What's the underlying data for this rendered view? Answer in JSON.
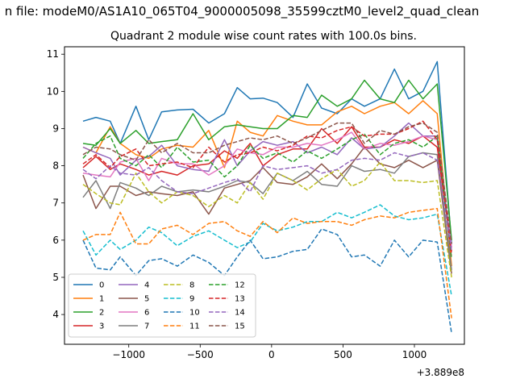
{
  "chart_data": {
    "type": "line",
    "suptitle": "n file: modeM0/AS1A10_065T04_9000005098_35599cztM0_level2_quad_clean",
    "title": "Quadrant 2 module wise count rates with 100.0s bins.",
    "xlabel": "",
    "ylabel": "",
    "x_offset_text": "+3.889e8",
    "xlim": [
      -1450,
      1350
    ],
    "ylim": [
      3.2,
      11.2
    ],
    "x_ticks": [
      -1000,
      -500,
      0,
      500,
      1000
    ],
    "x_tick_labels": [
      "−1000",
      "−500",
      "0",
      "500",
      "1000"
    ],
    "y_ticks": [
      4,
      5,
      6,
      7,
      8,
      9,
      10,
      11
    ],
    "y_tick_labels": [
      "4",
      "5",
      "6",
      "7",
      "8",
      "9",
      "10",
      "11"
    ],
    "legend_location": "lower-left",
    "legend_columns": 4,
    "x": [
      -1320,
      -1230,
      -1130,
      -1060,
      -950,
      -860,
      -770,
      -660,
      -550,
      -440,
      -330,
      -240,
      -150,
      -60,
      40,
      150,
      250,
      350,
      460,
      560,
      650,
      760,
      860,
      960,
      1060,
      1160,
      1260
    ],
    "series": [
      {
        "name": "0",
        "color": "#1f77b4",
        "dash": "solid",
        "values": [
          9.2,
          9.3,
          9.2,
          8.6,
          9.6,
          8.7,
          9.45,
          9.5,
          9.52,
          9.15,
          9.4,
          10.1,
          9.8,
          9.82,
          9.7,
          9.3,
          10.2,
          9.55,
          9.4,
          9.8,
          9.6,
          9.8,
          10.6,
          9.8,
          10.0,
          10.8,
          5.9
        ]
      },
      {
        "name": "1",
        "color": "#ff7f0e",
        "dash": "solid",
        "values": [
          8.5,
          8.35,
          9.05,
          8.6,
          8.3,
          8.2,
          8.45,
          8.55,
          8.5,
          8.95,
          7.95,
          9.2,
          8.9,
          8.8,
          9.35,
          9.2,
          9.1,
          9.1,
          9.45,
          9.6,
          9.4,
          9.6,
          9.7,
          9.4,
          9.75,
          9.4,
          5.3
        ]
      },
      {
        "name": "2",
        "color": "#2ca02c",
        "dash": "solid",
        "values": [
          8.6,
          8.55,
          9.0,
          8.6,
          8.95,
          8.6,
          8.65,
          8.7,
          9.4,
          8.7,
          9.05,
          9.1,
          9.05,
          9.0,
          9.0,
          9.35,
          9.3,
          9.9,
          9.6,
          9.8,
          10.3,
          9.8,
          9.7,
          10.3,
          9.8,
          10.2,
          6.0
        ]
      },
      {
        "name": "3",
        "color": "#d62728",
        "dash": "solid",
        "values": [
          7.95,
          8.25,
          7.9,
          8.05,
          7.9,
          7.75,
          7.85,
          7.75,
          8.0,
          8.05,
          8.4,
          8.2,
          8.6,
          8.0,
          8.3,
          8.45,
          8.45,
          9.0,
          8.6,
          9.05,
          8.5,
          8.5,
          8.7,
          8.6,
          8.8,
          8.5,
          5.7
        ]
      },
      {
        "name": "4",
        "color": "#9467bd",
        "dash": "solid",
        "values": [
          8.5,
          8.35,
          8.2,
          7.75,
          8.15,
          8.25,
          8.55,
          8.0,
          7.9,
          7.85,
          8.7,
          8.0,
          8.4,
          8.65,
          8.55,
          8.65,
          8.35,
          8.5,
          8.3,
          8.75,
          8.45,
          8.5,
          8.8,
          9.15,
          8.8,
          8.8,
          5.8
        ]
      },
      {
        "name": "5",
        "color": "#8c564b",
        "dash": "solid",
        "values": [
          7.75,
          6.85,
          7.45,
          7.45,
          7.2,
          7.3,
          7.25,
          7.2,
          7.3,
          6.7,
          7.4,
          7.5,
          7.6,
          7.95,
          7.55,
          7.5,
          7.7,
          8.05,
          7.65,
          8.05,
          8.5,
          8.05,
          7.95,
          8.15,
          7.95,
          8.15,
          5.1
        ]
      },
      {
        "name": "6",
        "color": "#e377c2",
        "dash": "solid",
        "values": [
          7.8,
          7.75,
          7.7,
          8.1,
          8.2,
          7.6,
          8.2,
          8.05,
          8.05,
          7.75,
          8.0,
          8.45,
          8.35,
          8.3,
          8.5,
          8.5,
          8.6,
          8.55,
          8.7,
          8.9,
          8.45,
          8.6,
          8.55,
          8.65,
          8.8,
          8.7,
          5.8
        ]
      },
      {
        "name": "7",
        "color": "#7f7f7f",
        "dash": "solid",
        "values": [
          7.15,
          7.6,
          6.85,
          7.55,
          7.4,
          7.2,
          7.45,
          7.3,
          7.35,
          7.3,
          7.45,
          7.6,
          7.55,
          7.25,
          7.8,
          7.6,
          7.85,
          7.5,
          7.45,
          8.0,
          7.85,
          7.9,
          7.8,
          8.25,
          8.35,
          8.3,
          5.2
        ]
      },
      {
        "name": "8",
        "color": "#bcbd22",
        "dash": "dashed",
        "values": [
          7.5,
          7.25,
          7.0,
          6.95,
          7.8,
          7.3,
          7.0,
          7.3,
          7.2,
          6.9,
          7.2,
          7.0,
          7.55,
          7.1,
          7.8,
          7.6,
          7.35,
          7.65,
          7.9,
          7.45,
          7.6,
          8.1,
          7.6,
          7.6,
          7.55,
          7.6,
          5.0
        ]
      },
      {
        "name": "9",
        "color": "#17becf",
        "dash": "dashed",
        "values": [
          6.25,
          5.6,
          6.0,
          5.75,
          6.0,
          6.35,
          6.2,
          5.85,
          6.1,
          6.25,
          6.0,
          5.8,
          5.95,
          6.45,
          6.25,
          6.35,
          6.5,
          6.5,
          6.75,
          6.6,
          6.75,
          6.95,
          6.65,
          6.55,
          6.6,
          6.7,
          4.5
        ]
      },
      {
        "name": "10",
        "color": "#1f77b4",
        "dash": "dashed",
        "values": [
          6.0,
          5.25,
          5.2,
          5.55,
          5.05,
          5.45,
          5.5,
          5.3,
          5.6,
          5.4,
          5.05,
          5.55,
          6.0,
          5.5,
          5.55,
          5.7,
          5.75,
          6.3,
          6.15,
          5.55,
          5.6,
          5.3,
          6.0,
          5.55,
          6.0,
          5.95,
          3.5
        ]
      },
      {
        "name": "11",
        "color": "#ff7f0e",
        "dash": "dashed",
        "values": [
          6.0,
          6.15,
          6.15,
          6.75,
          5.9,
          5.9,
          6.3,
          6.4,
          6.15,
          6.45,
          6.5,
          6.25,
          6.1,
          6.5,
          6.2,
          6.6,
          6.45,
          6.5,
          6.5,
          6.4,
          6.55,
          6.65,
          6.6,
          6.75,
          6.8,
          6.85,
          3.9
        ]
      },
      {
        "name": "12",
        "color": "#2ca02c",
        "dash": "dashed",
        "values": [
          8.2,
          8.6,
          8.8,
          8.2,
          8.0,
          8.3,
          7.95,
          8.5,
          8.1,
          8.15,
          7.7,
          8.0,
          8.55,
          8.2,
          8.35,
          8.1,
          8.4,
          8.2,
          8.45,
          8.7,
          8.85,
          8.3,
          8.6,
          8.7,
          8.5,
          8.8,
          5.5
        ]
      },
      {
        "name": "13",
        "color": "#d62728",
        "dash": "dashed",
        "values": [
          8.05,
          8.3,
          7.95,
          8.25,
          8.45,
          8.0,
          8.05,
          8.1,
          7.95,
          8.5,
          8.1,
          8.3,
          8.35,
          8.5,
          8.4,
          8.55,
          8.8,
          8.75,
          8.95,
          9.05,
          8.8,
          8.85,
          8.85,
          9.0,
          9.2,
          8.7,
          5.6
        ]
      },
      {
        "name": "14",
        "color": "#9467bd",
        "dash": "dashed",
        "values": [
          7.9,
          7.65,
          8.0,
          7.8,
          7.75,
          7.95,
          7.6,
          7.3,
          7.25,
          7.4,
          7.55,
          7.65,
          7.3,
          8.0,
          7.9,
          7.95,
          8.0,
          7.8,
          7.9,
          8.15,
          8.2,
          8.15,
          8.35,
          8.25,
          8.35,
          8.15,
          5.7
        ]
      },
      {
        "name": "15",
        "color": "#8c564b",
        "dash": "dashed",
        "values": [
          8.3,
          8.5,
          8.45,
          8.3,
          8.15,
          8.7,
          8.35,
          8.6,
          8.35,
          8.35,
          8.55,
          8.65,
          8.75,
          8.7,
          8.8,
          8.6,
          8.75,
          8.95,
          9.15,
          9.15,
          8.6,
          8.95,
          8.85,
          9.05,
          9.15,
          8.9,
          5.9
        ]
      }
    ]
  }
}
